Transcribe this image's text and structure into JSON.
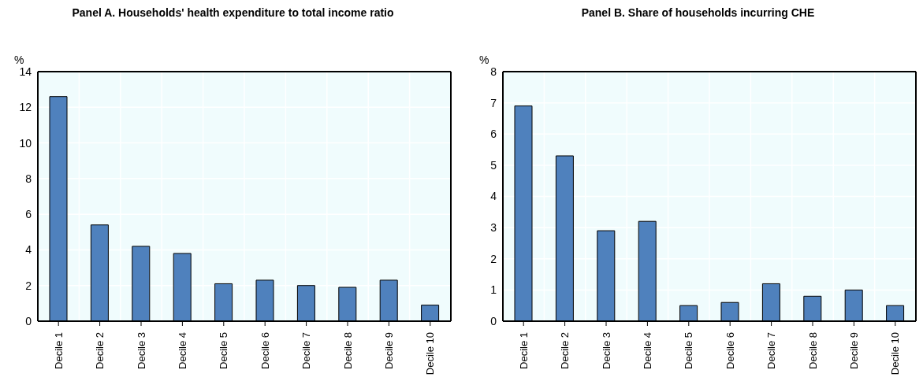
{
  "chart_data": [
    {
      "type": "bar",
      "title": "Panel A. Households' health expenditure to total income ratio",
      "ylabel": "%",
      "categories": [
        "Decile 1",
        "Decile 2",
        "Decile 3",
        "Decile 4",
        "Decile 5",
        "Decile 6",
        "Decile 7",
        "Decile 8",
        "Decile 9",
        "Decile 10"
      ],
      "values": [
        12.6,
        5.4,
        4.2,
        3.8,
        2.1,
        2.3,
        2.0,
        1.9,
        2.3,
        0.9
      ],
      "color": "#4f81bd",
      "ylim": [
        0,
        14
      ],
      "yticks": [
        0,
        2,
        4,
        6,
        8,
        10,
        12,
        14
      ],
      "grid": true
    },
    {
      "type": "bar",
      "title": "Panel B. Share of households incurring CHE",
      "ylabel": "%",
      "categories": [
        "Decile 1",
        "Decile 2",
        "Decile 3",
        "Decile 4",
        "Decile 5",
        "Decile 6",
        "Decile 7",
        "Decile 8",
        "Decile 9",
        "Decile 10"
      ],
      "values": [
        6.9,
        5.3,
        2.9,
        3.2,
        0.5,
        0.6,
        1.2,
        0.8,
        1.0,
        0.5
      ],
      "color": "#4f81bd",
      "ylim": [
        0,
        8
      ],
      "yticks": [
        0,
        1,
        2,
        3,
        4,
        5,
        6,
        7,
        8
      ],
      "grid": true
    }
  ]
}
